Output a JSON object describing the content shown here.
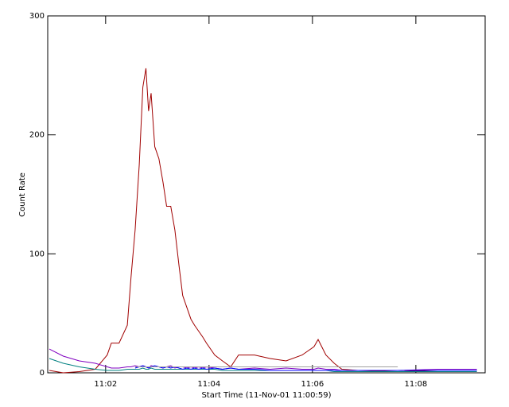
{
  "chart_data": {
    "type": "line",
    "xlabel": "Start Time (11-Nov-01 11:00:59)",
    "ylabel": "Count Rate",
    "x": [
      0.91,
      1.18,
      1.49,
      1.8,
      2.03,
      2.11,
      2.26,
      2.42,
      2.49,
      2.57,
      2.65,
      2.72,
      2.78,
      2.83,
      2.88,
      2.95,
      3.03,
      3.11,
      3.18,
      3.26,
      3.34,
      3.42,
      3.49,
      3.57,
      3.65,
      3.72,
      3.8,
      3.88,
      3.95,
      4.11,
      4.26,
      4.42,
      4.57,
      4.88,
      5.18,
      5.49,
      5.8,
      6.03,
      6.11,
      6.26,
      6.42,
      6.57,
      6.88,
      7.65,
      8.42,
      9.18
    ],
    "series": [
      {
        "color": "#a00000",
        "values": [
          2,
          0,
          1,
          3,
          15,
          25,
          25,
          40,
          80,
          120,
          175,
          240,
          256,
          220,
          235,
          190,
          180,
          160,
          140,
          140,
          120,
          90,
          65,
          55,
          45,
          40,
          35,
          30,
          25,
          15,
          10,
          5,
          15,
          15,
          12,
          10,
          15,
          22,
          28,
          15,
          8,
          3,
          2,
          1,
          2,
          2
        ]
      },
      {
        "color": "#8000c0",
        "values": [
          20,
          14,
          10,
          8,
          5,
          4,
          4,
          5,
          5,
          6,
          5,
          6,
          5,
          4,
          6,
          5,
          5,
          4,
          5,
          6,
          4,
          5,
          5,
          4,
          5,
          4,
          5,
          4,
          5,
          4,
          3,
          4,
          3,
          4,
          3,
          4,
          3,
          3,
          4,
          3,
          3,
          2,
          2,
          2,
          3,
          3
        ]
      },
      {
        "color": "#008080",
        "values": [
          12,
          8,
          5,
          3,
          2,
          2,
          2,
          3,
          3,
          3,
          3,
          4,
          3,
          3,
          4,
          3,
          3,
          3,
          3,
          3,
          3,
          3,
          3,
          3,
          3,
          3,
          3,
          3,
          3,
          3,
          2,
          2,
          2,
          2,
          2,
          2,
          2,
          2,
          2,
          2,
          1,
          1,
          1,
          1,
          1,
          1
        ]
      },
      {
        "color": "#0000ff",
        "values": [
          null,
          null,
          null,
          null,
          null,
          null,
          null,
          null,
          null,
          4,
          5,
          6,
          5,
          4,
          5,
          6,
          5,
          4,
          5,
          4,
          5,
          4,
          3,
          4,
          3,
          4,
          3,
          4,
          3,
          4,
          3,
          4,
          3,
          3,
          2,
          2,
          2,
          2,
          2,
          2,
          2,
          2,
          2,
          2,
          2,
          2
        ]
      },
      {
        "color": "#a0a0a0",
        "values": [
          null,
          null,
          null,
          null,
          null,
          null,
          null,
          null,
          null,
          5,
          5,
          5,
          5,
          5,
          5,
          5,
          5,
          5,
          5,
          5,
          5,
          5,
          5,
          5,
          5,
          5,
          5,
          5,
          5,
          5,
          5,
          5,
          5,
          5,
          5,
          5,
          5,
          5,
          5,
          5,
          5,
          5,
          5,
          5,
          null,
          null
        ]
      }
    ],
    "xlim": [
      0.88,
      9.34
    ],
    "xticks": [
      {
        "value": 2,
        "label": "11:02"
      },
      {
        "value": 4,
        "label": "11:04"
      },
      {
        "value": 6,
        "label": "11:06"
      },
      {
        "value": 8,
        "label": "11:08"
      }
    ],
    "ylim": [
      0,
      300
    ],
    "yticks": [
      0,
      100,
      200,
      300
    ]
  }
}
